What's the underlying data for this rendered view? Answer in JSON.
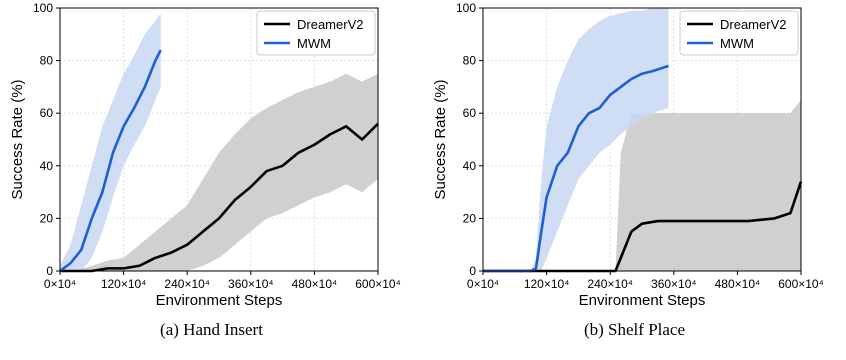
{
  "chart_data": [
    {
      "type": "line",
      "caption": "(a)  Hand Insert",
      "xlabel": "Environment Steps",
      "ylabel": "Success Rate (%)",
      "xlim": [
        0,
        6000000
      ],
      "ylim": [
        0,
        100
      ],
      "x_ticks": [
        0,
        1200000,
        2400000,
        3600000,
        4800000,
        6000000
      ],
      "x_tick_labels": [
        "0×10⁴",
        "120×10⁴",
        "240×10⁴",
        "360×10⁴",
        "480×10⁴",
        "600×10⁴"
      ],
      "y_ticks": [
        0,
        20,
        40,
        60,
        80,
        100
      ],
      "y_tick_labels": [
        "0",
        "20",
        "40",
        "60",
        "80",
        "100"
      ],
      "grid": true,
      "legend_position": "top-right",
      "series": [
        {
          "name": "DreamerV2",
          "color": "#000000",
          "band_color": "#c8c8c8",
          "x": [
            0,
            300000,
            600000,
            900000,
            1200000,
            1500000,
            1800000,
            2100000,
            2400000,
            2700000,
            3000000,
            3300000,
            3600000,
            3900000,
            4200000,
            4500000,
            4800000,
            5100000,
            5400000,
            5700000,
            6000000
          ],
          "mean": [
            0,
            0,
            0,
            1,
            1,
            2,
            5,
            7,
            10,
            15,
            20,
            27,
            32,
            38,
            40,
            45,
            48,
            52,
            55,
            50,
            56
          ],
          "low": [
            0,
            0,
            0,
            0,
            0,
            0,
            0,
            0,
            0,
            2,
            5,
            10,
            15,
            20,
            22,
            25,
            28,
            30,
            33,
            30,
            35
          ],
          "high": [
            0,
            0,
            2,
            4,
            5,
            10,
            15,
            20,
            25,
            35,
            45,
            52,
            58,
            62,
            65,
            68,
            70,
            72,
            75,
            72,
            75
          ]
        },
        {
          "name": "MWM",
          "color": "#1f5fd1",
          "band_color": "#c7d8f3",
          "x": [
            0,
            200000,
            400000,
            600000,
            800000,
            1000000,
            1200000,
            1400000,
            1600000,
            1800000,
            1900000
          ],
          "mean": [
            0,
            3,
            8,
            20,
            30,
            45,
            55,
            62,
            70,
            80,
            84
          ],
          "low": [
            0,
            0,
            0,
            5,
            15,
            28,
            40,
            48,
            55,
            65,
            70
          ],
          "high": [
            2,
            10,
            25,
            40,
            55,
            65,
            75,
            82,
            90,
            95,
            98
          ]
        }
      ]
    },
    {
      "type": "line",
      "caption": "(b)  Shelf Place",
      "xlabel": "Environment Steps",
      "ylabel": "Success Rate (%)",
      "xlim": [
        0,
        6000000
      ],
      "ylim": [
        0,
        100
      ],
      "x_ticks": [
        0,
        1200000,
        2400000,
        3600000,
        4800000,
        6000000
      ],
      "x_tick_labels": [
        "0×10⁴",
        "120×10⁴",
        "240×10⁴",
        "360×10⁴",
        "480×10⁴",
        "600×10⁴"
      ],
      "y_ticks": [
        0,
        20,
        40,
        60,
        80,
        100
      ],
      "y_tick_labels": [
        "0",
        "20",
        "40",
        "60",
        "80",
        "100"
      ],
      "grid": true,
      "legend_position": "top-right",
      "series": [
        {
          "name": "DreamerV2",
          "color": "#000000",
          "band_color": "#c8c8c8",
          "x": [
            0,
            2500000,
            2600000,
            2800000,
            3000000,
            3300000,
            3600000,
            4000000,
            4500000,
            5000000,
            5500000,
            5800000,
            6000000
          ],
          "mean": [
            0,
            0,
            5,
            15,
            18,
            19,
            19,
            19,
            19,
            19,
            20,
            22,
            34
          ],
          "low": [
            0,
            0,
            0,
            0,
            0,
            0,
            0,
            0,
            0,
            0,
            0,
            0,
            0
          ],
          "high": [
            0,
            0,
            45,
            60,
            60,
            60,
            60,
            60,
            60,
            60,
            60,
            60,
            65
          ]
        },
        {
          "name": "MWM",
          "color": "#1f5fd1",
          "band_color": "#c7d8f3",
          "x": [
            0,
            900000,
            1000000,
            1100000,
            1200000,
            1400000,
            1600000,
            1800000,
            2000000,
            2200000,
            2400000,
            2600000,
            2800000,
            3000000,
            3200000,
            3500000
          ],
          "mean": [
            0,
            0,
            1,
            15,
            28,
            40,
            45,
            55,
            60,
            62,
            67,
            70,
            73,
            75,
            76,
            78
          ],
          "low": [
            0,
            0,
            0,
            0,
            5,
            15,
            25,
            35,
            40,
            45,
            48,
            52,
            55,
            58,
            60,
            62
          ],
          "high": [
            0,
            0,
            5,
            35,
            55,
            70,
            80,
            88,
            92,
            95,
            97,
            98,
            99,
            99,
            100,
            100
          ]
        }
      ]
    }
  ]
}
